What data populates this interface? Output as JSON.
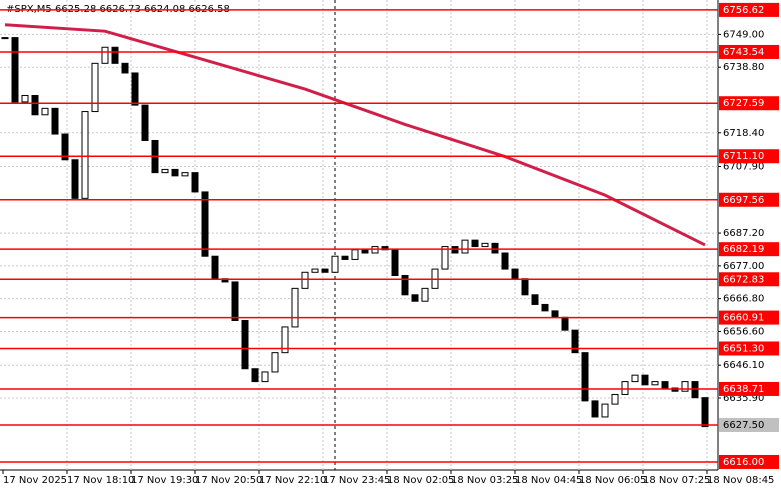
{
  "chart_data": {
    "type": "candlestick",
    "title": "#SPX,M5 6625.28 6626.73 6624.08 6626.58",
    "closes": [
      6748,
      6728,
      6730,
      6724,
      6726,
      6718,
      6710,
      6698,
      6725,
      6740,
      6745,
      6740,
      6737,
      6727,
      6716,
      6706,
      6707,
      6705,
      6706,
      6700,
      6680,
      6673,
      6672,
      6660,
      6645,
      6641,
      6644,
      6650,
      6658,
      6670,
      6675,
      6676,
      6675,
      6680,
      6679,
      6682,
      6681,
      6683,
      6682,
      6674,
      6668,
      6666,
      6670,
      6676,
      6683,
      6681,
      6685,
      6683,
      6684,
      6681,
      6676,
      6673,
      6668,
      6665,
      6663,
      6661,
      6657,
      6650,
      6635,
      6630,
      6634,
      6637,
      6641,
      6643,
      6640,
      6641,
      6639,
      6638,
      6641,
      6636,
      6627
    ],
    "ma": {
      "x": [
        0,
        10,
        20,
        30,
        40,
        50,
        60,
        70
      ],
      "values": [
        6752,
        6750,
        6741,
        6732,
        6721,
        6711,
        6699,
        6683.5
      ],
      "color": "#d0204a"
    },
    "ylim": [
      6613.5,
      6759.7
    ],
    "yticks": [
      {
        "value": 6749,
        "label": "6749.00"
      },
      {
        "value": 6738.8,
        "label": "6738.80"
      },
      {
        "value": 6718.4,
        "label": "6718.40"
      },
      {
        "value": 6707.9,
        "label": "6707.90"
      },
      {
        "value": 6687.2,
        "label": "6687.20"
      },
      {
        "value": 6677,
        "label": "6677.00"
      },
      {
        "value": 6666.8,
        "label": "6666.80"
      },
      {
        "value": 6656.6,
        "label": "6656.60"
      },
      {
        "value": 6646.1,
        "label": "6646.10"
      },
      {
        "value": 6635.9,
        "label": "6635.90"
      }
    ],
    "levels": [
      6756.62,
      6743.54,
      6727.59,
      {
        "value": 6711.1,
        "label": "6711.10"
      },
      6697.56,
      6682.19,
      6672.83,
      6660.91,
      {
        "value": 6651.3,
        "label": "6651.30"
      },
      6638.71,
      {
        "value": 6627.5,
        "label": "6627.50"
      },
      {
        "value": 6616,
        "label": "6616.00"
      }
    ],
    "current_level_index": 10,
    "level_color": "#ff0000",
    "xlabels": [
      "17 Nov 2025",
      "17 Nov 18:10",
      "17 Nov 19:30",
      "17 Nov 20:50",
      "17 Nov 22:10",
      "17 Nov 23:45",
      "18 Nov 02:05",
      "18 Nov 03:25",
      "18 Nov 04:45",
      "18 Nov 06:05",
      "18 Nov 07:25",
      "18 Nov 08:45"
    ],
    "grid": true
  }
}
